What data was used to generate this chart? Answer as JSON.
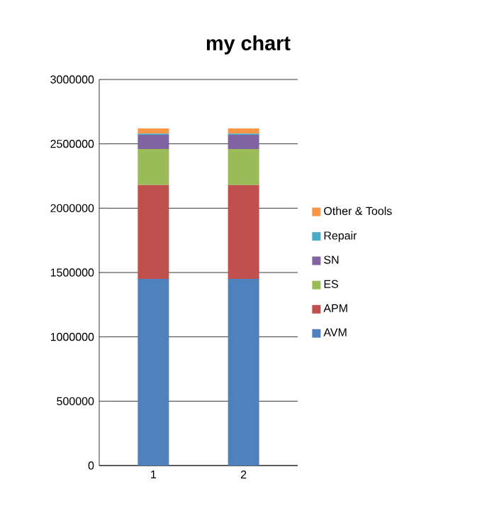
{
  "chart_data": {
    "type": "bar",
    "title": "my chart",
    "stacked": true,
    "categories": [
      "1",
      "2"
    ],
    "series": [
      {
        "name": "AVM",
        "color": "#4f81bd",
        "values": [
          1450000,
          1450000
        ]
      },
      {
        "name": "APM",
        "color": "#c0504d",
        "values": [
          730000,
          730000
        ]
      },
      {
        "name": "ES",
        "color": "#9bbb59",
        "values": [
          280000,
          280000
        ]
      },
      {
        "name": "SN",
        "color": "#8064a2",
        "values": [
          110000,
          110000
        ]
      },
      {
        "name": "Repair",
        "color": "#4bacc6",
        "values": [
          10000,
          10000
        ]
      },
      {
        "name": "Other & Tools",
        "color": "#f79646",
        "values": [
          40000,
          40000
        ]
      }
    ],
    "ylim": [
      0,
      3000000
    ],
    "yticks": [
      0,
      500000,
      1000000,
      1500000,
      2000000,
      2500000,
      3000000
    ],
    "grid": "y",
    "legend": "right"
  }
}
